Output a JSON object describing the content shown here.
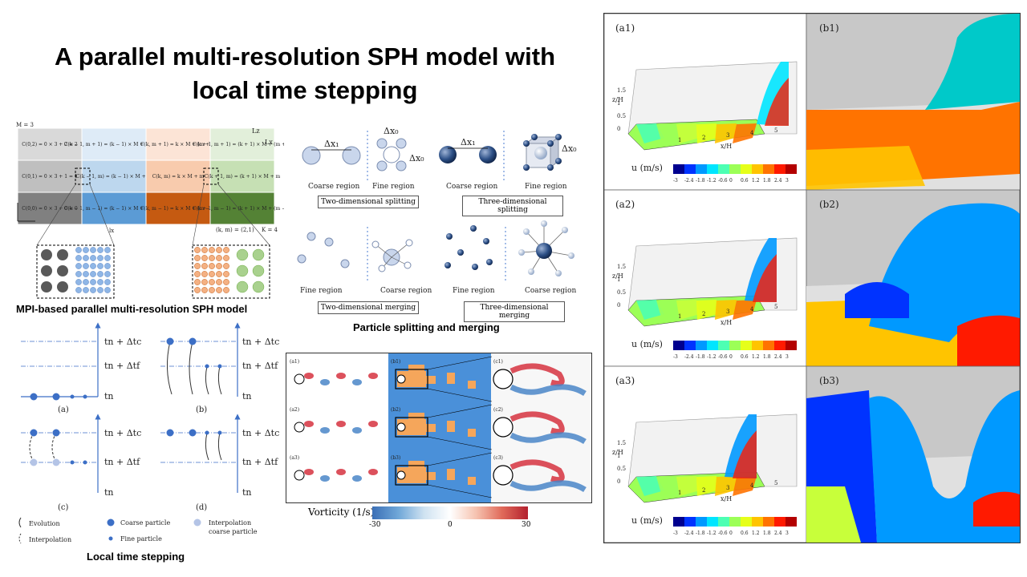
{
  "title_line1": "A parallel multi-resolution SPH model with",
  "title_line2": "local time stepping",
  "captions": {
    "mpi": "MPI-based parallel multi-resolution SPH model",
    "splitting": "Particle splitting and merging",
    "lts": "Local time stepping"
  },
  "grid": {
    "m_label": "M = 3",
    "k_label": "K = 4",
    "km_label": "(k, m) = (2,1)",
    "lx": "lx",
    "lz": "lz",
    "Lz": "Lz",
    "Lx": "Lx",
    "cells": [
      [
        "C(0,2) = 0 × 3 + 2 = 2",
        "C(k − 1, m + 1) = (k − 1) × M + (m + 1)",
        "C(k, m + 1) = k × M + (m + 1)",
        "C(k + 1, m + 1) = (k + 1) × M + (m + 1)"
      ],
      [
        "C(0,1) = 0 × 3 + 1 = 1",
        "C(k − 1, m) = (k − 1) × M + m",
        "C(k, m) = k × M + m",
        "C(k + 1, m) = (k + 1) × M + m"
      ],
      [
        "C(0,0) = 0 × 3 + 0 = 0",
        "C(k − 1, m − 1) = (k − 1) × M + (m − 1)",
        "C(k, m − 1) = k × M + (m − 1)",
        "C(k + 1, m − 1) = (k + 1) × M + (m − 1)"
      ]
    ],
    "colors": [
      [
        "#d9d9d9",
        "#deebf7",
        "#fce4d6",
        "#e2efda"
      ],
      [
        "#bfbfbf",
        "#bdd7ee",
        "#f8cbad",
        "#c6e0b4"
      ],
      [
        "#808080",
        "#5b9bd5",
        "#c55a11",
        "#548235"
      ]
    ]
  },
  "splitting": {
    "coarse_region": "Coarse region",
    "fine_region": "Fine region",
    "dx1": "Δx₁",
    "dx0": "Δx₀",
    "two_d_split": "Two-dimensional splitting",
    "three_d_split": "Three-dimensional splitting",
    "two_d_merge": "Two-dimensional merging",
    "three_d_merge": "Three-dimensional merging"
  },
  "lts": {
    "tc": "tn + Δtc",
    "tf": "tn + Δtf",
    "tn": "tn",
    "panel_a": "(a)",
    "panel_b": "(b)",
    "panel_c": "(c)",
    "panel_d": "(d)",
    "legend": {
      "evolution": "Evolution",
      "interpolation": "Interpolation",
      "coarse": "Coarse particle",
      "fine": "Fine particle",
      "interp_coarse_1": "Interpolation",
      "interp_coarse_2": "coarse particle"
    }
  },
  "vorticity": {
    "labels_a": [
      "(a1)",
      "(a2)",
      "(a3)"
    ],
    "labels_b": [
      "(b1)",
      "(b2)",
      "(b3)"
    ],
    "labels_c": [
      "(c1)",
      "(c2)",
      "(c3)"
    ],
    "colorbar_title": "Vorticity (1/s)",
    "ticks": [
      "-30",
      "0",
      "30"
    ]
  },
  "sim": {
    "labels_a": [
      "(a1)",
      "(a2)",
      "(a3)"
    ],
    "labels_b": [
      "(b1)",
      "(b2)",
      "(b3)"
    ],
    "colorbar_title": "u (m/s)",
    "ticks": [
      "-3",
      "-2.4",
      "-1.8",
      "-1.2",
      "-0.6",
      "0",
      "0.6",
      "1.2",
      "1.8",
      "2.4",
      "3"
    ],
    "axis_x": "x/H",
    "axis_z": "z/H",
    "axis_y": "y/H",
    "x_ticks": [
      "1",
      "2",
      "3",
      "4",
      "5"
    ],
    "z_ticks": [
      "0",
      "0.5",
      "1",
      "1.5"
    ]
  }
}
